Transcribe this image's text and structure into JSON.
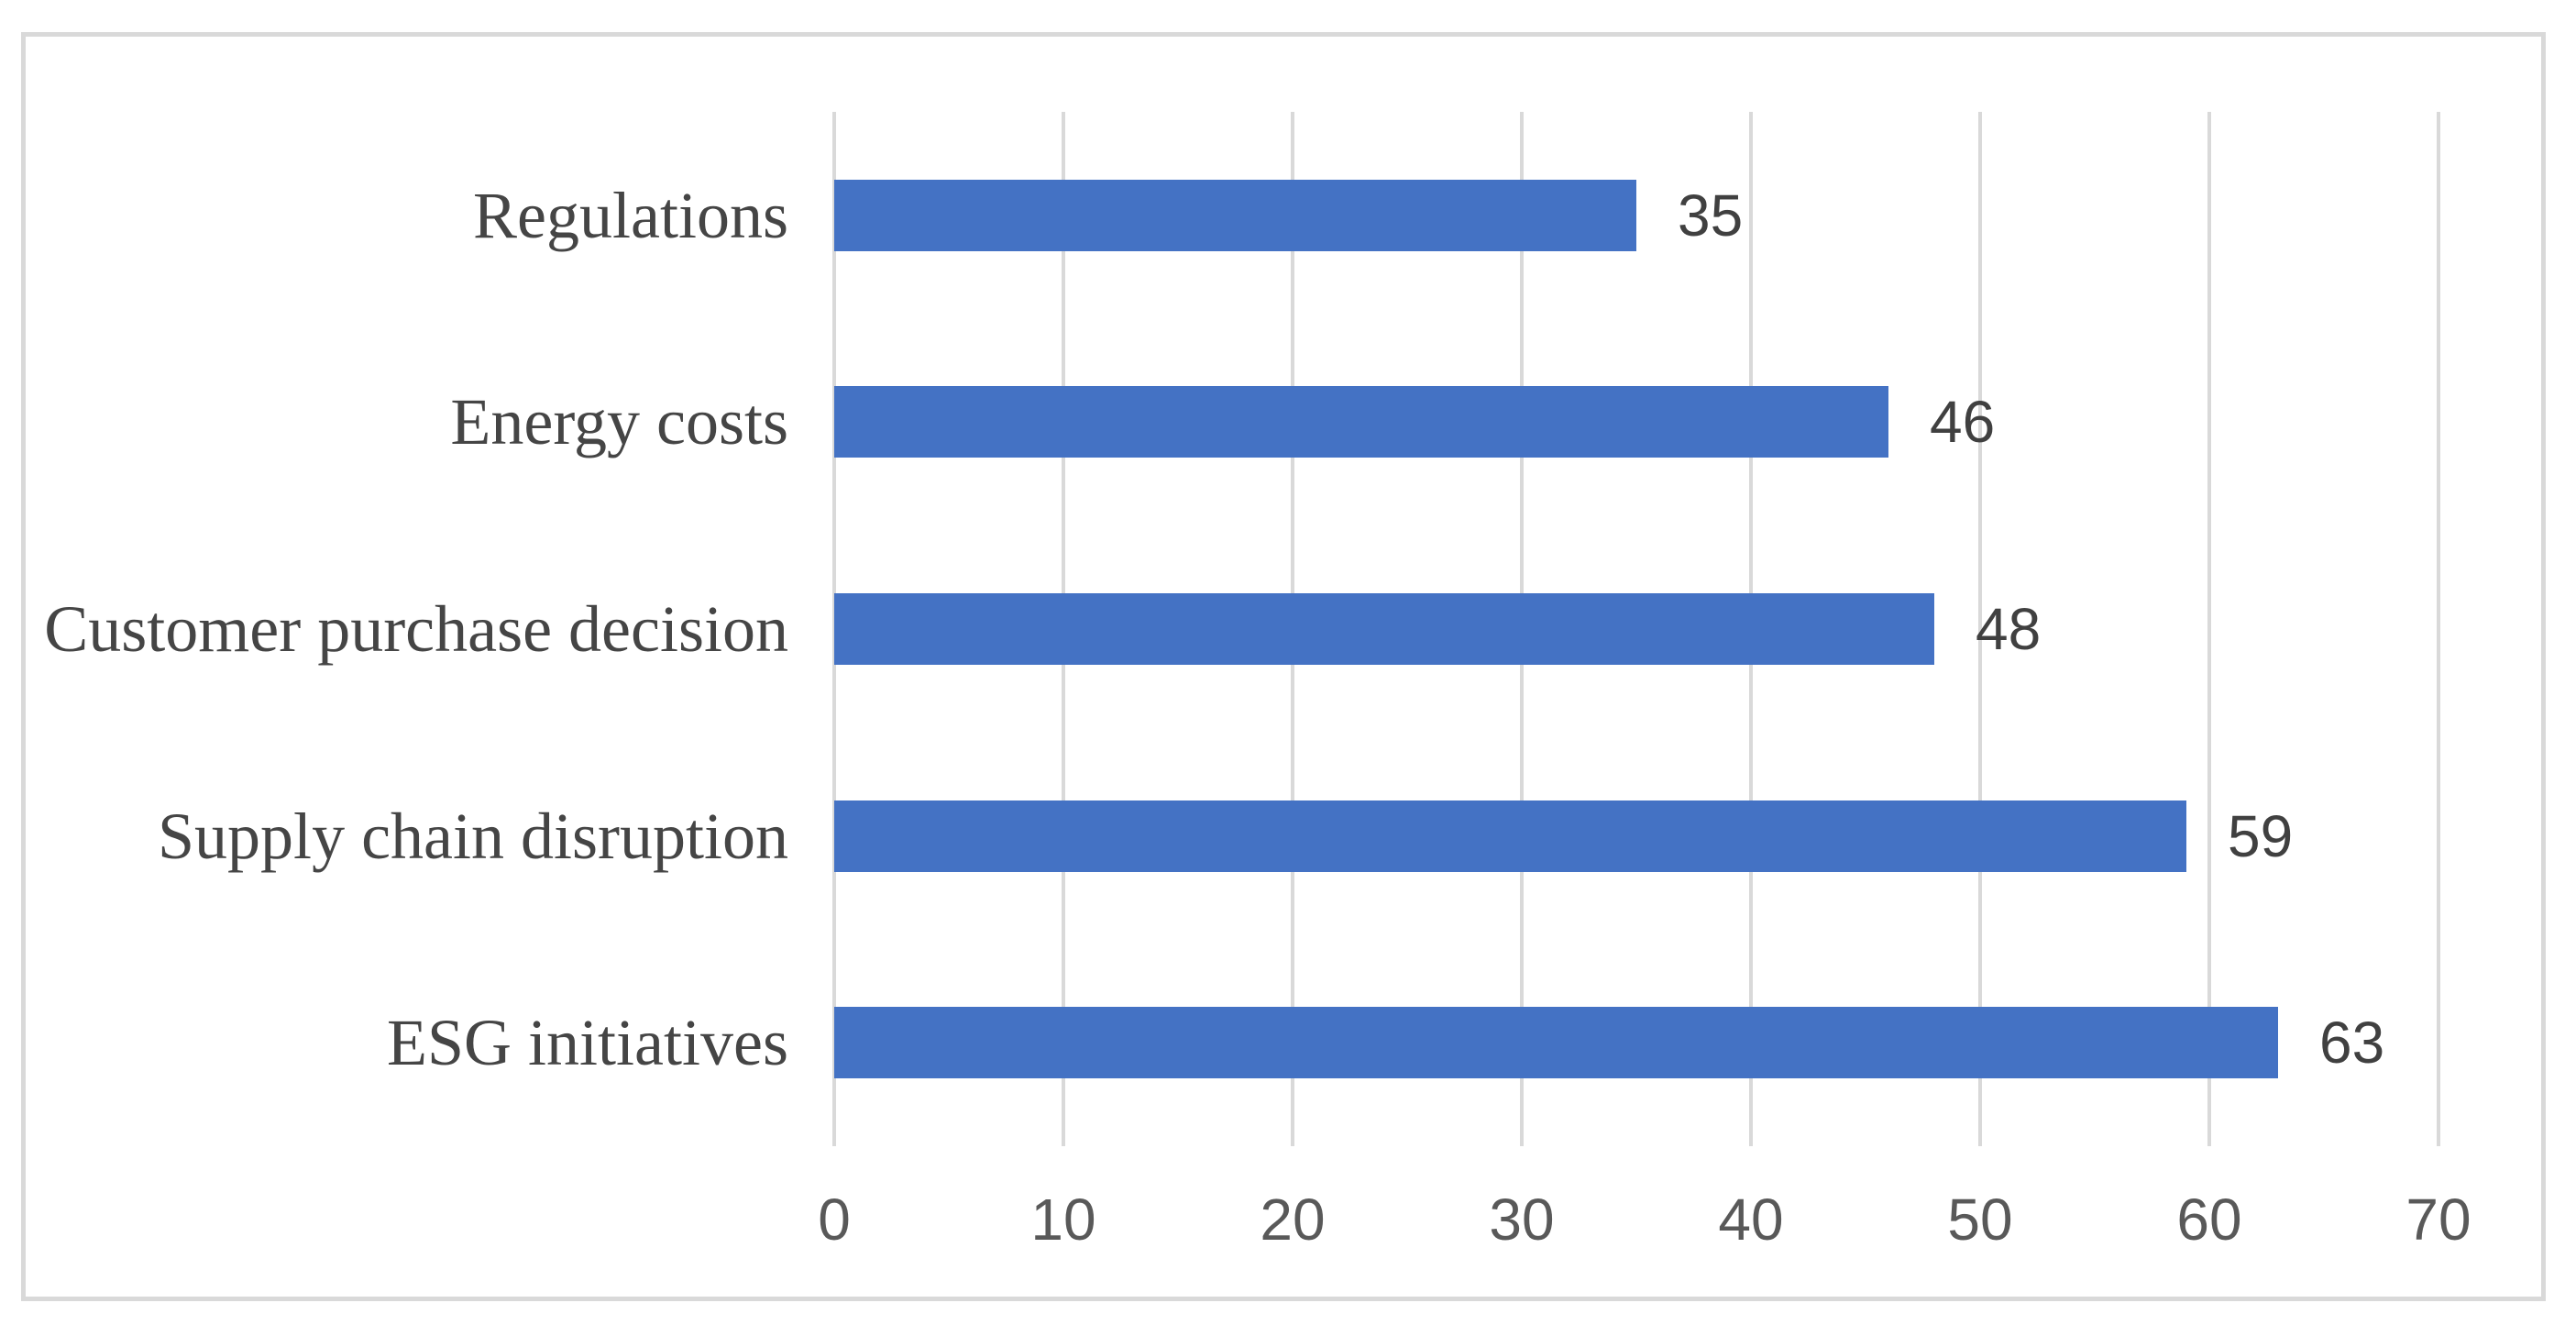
{
  "chart_data": {
    "type": "bar",
    "orientation": "horizontal",
    "title": "",
    "xlabel": "",
    "ylabel": "",
    "categories": [
      "Regulations",
      "Energy costs",
      "Customer purchase decision",
      "Supply chain disruption",
      "ESG initiatives"
    ],
    "values": [
      35,
      46,
      48,
      59,
      63
    ],
    "data_labels": [
      "35",
      "46",
      "48",
      "59",
      "63"
    ],
    "xlim": [
      0,
      70
    ],
    "xticks": [
      "0",
      "10",
      "20",
      "30",
      "40",
      "50",
      "60",
      "70"
    ],
    "grid": "vertical-on",
    "legend": "none",
    "colors": {
      "bar_fill": "#4472c4",
      "gridline": "#d9d9d9",
      "frame_border": "#d9d9d9",
      "background": "#ffffff",
      "category_label_text": "#454545",
      "data_label_text": "#404040",
      "tick_label_text": "#595959"
    }
  }
}
